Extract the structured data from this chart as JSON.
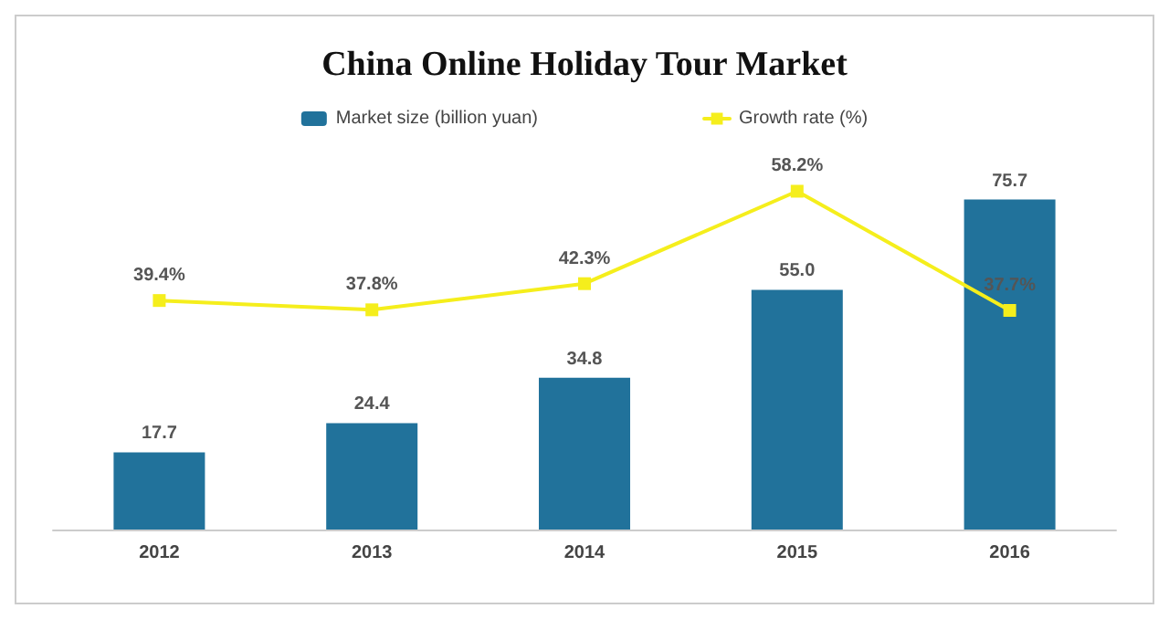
{
  "chart_data": {
    "type": "bar",
    "title": "China Online Holiday Tour Market",
    "categories": [
      "2012",
      "2013",
      "2014",
      "2015",
      "2016"
    ],
    "series": [
      {
        "name": "Market size (billion yuan)",
        "color": "#21729b",
        "values": [
          17.7,
          24.4,
          34.8,
          55.0,
          75.7
        ],
        "value_labels": [
          "17.7",
          "24.4",
          "34.8",
          "55.0",
          "75.7"
        ]
      },
      {
        "name": "Growth rate (%)",
        "type": "line",
        "axis": "y2",
        "color": "#f5ee1c",
        "values": [
          39.4,
          37.8,
          42.3,
          58.2,
          37.7
        ],
        "value_labels": [
          "39.4%",
          "37.8%",
          "42.3%",
          "58.2%",
          "37.7%"
        ]
      }
    ],
    "legend": "top",
    "grid": false,
    "marker": "square",
    "line_style": "solid",
    "tick_labels": "x"
  }
}
